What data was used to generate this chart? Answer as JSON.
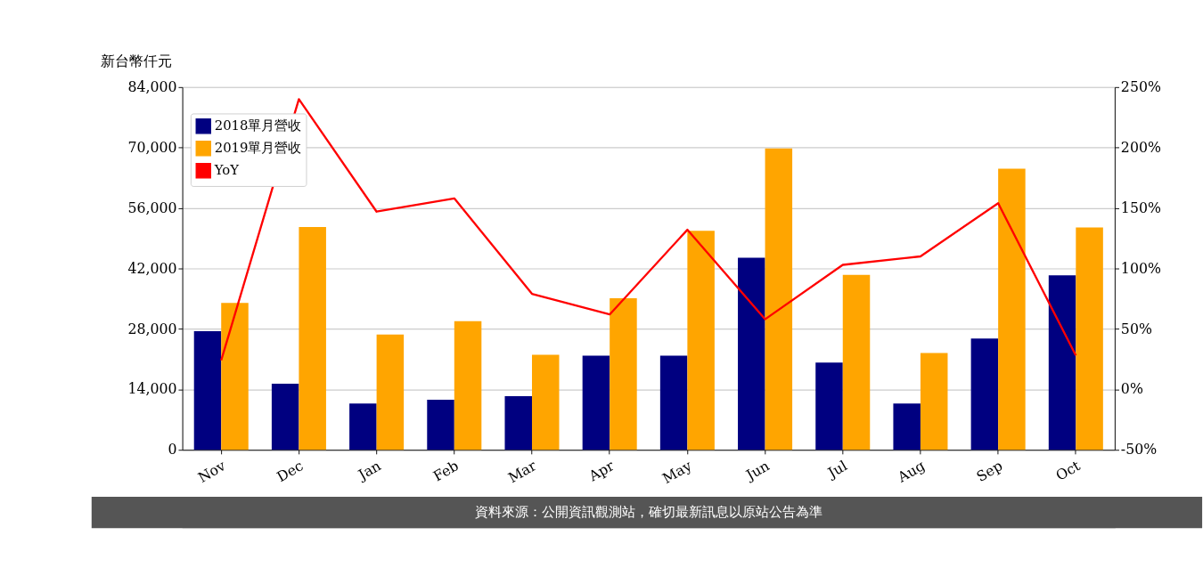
{
  "chart_data": {
    "type": "bar",
    "ylabel": "新台幣仟元",
    "categories": [
      "Nov",
      "Dec",
      "Jan",
      "Feb",
      "Mar",
      "Apr",
      "May",
      "Jun",
      "Jul",
      "Aug",
      "Sep",
      "Oct"
    ],
    "series": [
      {
        "name": "2018單月營收",
        "color": "#000080",
        "values": [
          27500,
          15300,
          10700,
          11600,
          12400,
          21800,
          21800,
          44500,
          20200,
          10700,
          25800,
          40400
        ]
      },
      {
        "name": "2019單月營收",
        "color": "#ffa500",
        "values": [
          34000,
          51600,
          26700,
          29800,
          22000,
          35100,
          50700,
          69800,
          40500,
          22400,
          65100,
          51500
        ]
      },
      {
        "name": "YoY",
        "type": "line",
        "axis": "y2",
        "color": "#ff0000",
        "values": [
          24,
          240,
          147,
          158,
          79,
          62,
          132,
          58,
          103,
          110,
          154,
          28
        ]
      }
    ],
    "ylim": [
      0,
      84000
    ],
    "yticks": [
      {
        "value": 0,
        "label": "0"
      },
      {
        "value": 14000,
        "label": "14,000"
      },
      {
        "value": 28000,
        "label": "28,000"
      },
      {
        "value": 42000,
        "label": "42,000"
      },
      {
        "value": 56000,
        "label": "56,000"
      },
      {
        "value": 70000,
        "label": "70,000"
      },
      {
        "value": 84000,
        "label": "84,000"
      }
    ],
    "y2lim": [
      -50,
      250
    ],
    "y2ticks": [
      {
        "value": -50,
        "label": "-50%"
      },
      {
        "value": 0,
        "label": "0%"
      },
      {
        "value": 50,
        "label": "50%"
      },
      {
        "value": 100,
        "label": "100%"
      },
      {
        "value": 150,
        "label": "150%"
      },
      {
        "value": 200,
        "label": "200%"
      },
      {
        "value": 250,
        "label": "250%"
      }
    ],
    "grid": "y",
    "legend": "top left",
    "annotations": [
      "資料來源：公開資訊觀測站，確切最新訊息以原站公告為準"
    ]
  }
}
